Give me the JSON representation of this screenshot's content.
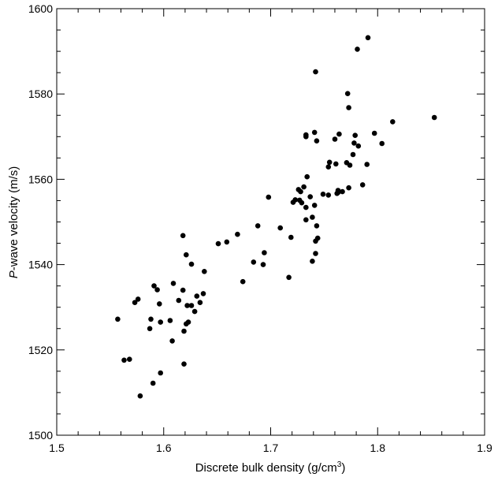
{
  "chart_data": {
    "type": "scatter",
    "xlabel": "Discrete bulk density (g/cm3)",
    "xlabel_main": "Discrete bulk density (g/cm",
    "xlabel_sup": "3",
    "xlabel_end": ")",
    "ylabel": "P-wave velocity (m/s)",
    "ylabel_italic": "P",
    "ylabel_rest": "-wave velocity (m/s)",
    "xlim": [
      1.5,
      1.9
    ],
    "ylim": [
      1500,
      1600
    ],
    "x_ticks": [
      "1.5",
      "1.6",
      "1.7",
      "1.8",
      "1.9"
    ],
    "y_ticks": [
      "1500",
      "1520",
      "1540",
      "1560",
      "1580",
      "1600"
    ],
    "grid": false,
    "marker_color": "#000000",
    "points": [
      [
        1.791,
        1593.2
      ],
      [
        1.781,
        1590.5
      ],
      [
        1.742,
        1585.2
      ],
      [
        1.772,
        1580.1
      ],
      [
        1.773,
        1576.8
      ],
      [
        1.853,
        1574.5
      ],
      [
        1.814,
        1573.5
      ],
      [
        1.741,
        1571.0
      ],
      [
        1.797,
        1570.8
      ],
      [
        1.733,
        1570.4
      ],
      [
        1.764,
        1570.6
      ],
      [
        1.779,
        1570.3
      ],
      [
        1.733,
        1570.0
      ],
      [
        1.76,
        1569.4
      ],
      [
        1.743,
        1569.0
      ],
      [
        1.804,
        1568.4
      ],
      [
        1.778,
        1568.5
      ],
      [
        1.782,
        1567.8
      ],
      [
        1.771,
        1563.9
      ],
      [
        1.761,
        1563.6
      ],
      [
        1.774,
        1563.3
      ],
      [
        1.777,
        1565.8
      ],
      [
        1.79,
        1563.5
      ],
      [
        1.754,
        1562.9
      ],
      [
        1.755,
        1564.0
      ],
      [
        1.734,
        1560.6
      ],
      [
        1.786,
        1558.7
      ],
      [
        1.773,
        1558.0
      ],
      [
        1.763,
        1557.4
      ],
      [
        1.767,
        1557.1
      ],
      [
        1.762,
        1556.7
      ],
      [
        1.763,
        1556.9
      ],
      [
        1.749,
        1556.5
      ],
      [
        1.754,
        1556.3
      ],
      [
        1.731,
        1558.2
      ],
      [
        1.726,
        1557.6
      ],
      [
        1.728,
        1557.1
      ],
      [
        1.737,
        1555.9
      ],
      [
        1.698,
        1555.8
      ],
      [
        1.727,
        1555.1
      ],
      [
        1.723,
        1555.2
      ],
      [
        1.721,
        1554.6
      ],
      [
        1.729,
        1554.5
      ],
      [
        1.741,
        1553.9
      ],
      [
        1.733,
        1553.4
      ],
      [
        1.739,
        1551.1
      ],
      [
        1.733,
        1550.5
      ],
      [
        1.743,
        1549.1
      ],
      [
        1.709,
        1548.6
      ],
      [
        1.688,
        1549.1
      ],
      [
        1.669,
        1547.1
      ],
      [
        1.719,
        1546.4
      ],
      [
        1.744,
        1546.2
      ],
      [
        1.742,
        1545.5
      ],
      [
        1.659,
        1545.3
      ],
      [
        1.651,
        1544.9
      ],
      [
        1.618,
        1546.8
      ],
      [
        1.694,
        1542.8
      ],
      [
        1.742,
        1542.6
      ],
      [
        1.684,
        1540.6
      ],
      [
        1.693,
        1540.0
      ],
      [
        1.739,
        1540.8
      ],
      [
        1.621,
        1542.3
      ],
      [
        1.626,
        1540.1
      ],
      [
        1.638,
        1538.4
      ],
      [
        1.717,
        1537.0
      ],
      [
        1.674,
        1536.0
      ],
      [
        1.609,
        1535.6
      ],
      [
        1.591,
        1535.0
      ],
      [
        1.594,
        1534.1
      ],
      [
        1.618,
        1534.0
      ],
      [
        1.637,
        1533.2
      ],
      [
        1.631,
        1532.6
      ],
      [
        1.576,
        1531.9
      ],
      [
        1.614,
        1531.6
      ],
      [
        1.573,
        1531.1
      ],
      [
        1.596,
        1530.8
      ],
      [
        1.634,
        1531.1
      ],
      [
        1.626,
        1530.4
      ],
      [
        1.622,
        1530.4
      ],
      [
        1.629,
        1529.0
      ],
      [
        1.557,
        1527.2
      ],
      [
        1.588,
        1527.2
      ],
      [
        1.597,
        1526.5
      ],
      [
        1.606,
        1526.9
      ],
      [
        1.623,
        1526.5
      ],
      [
        1.621,
        1526.1
      ],
      [
        1.587,
        1525.0
      ],
      [
        1.619,
        1524.4
      ],
      [
        1.608,
        1522.1
      ],
      [
        1.563,
        1517.6
      ],
      [
        1.568,
        1517.8
      ],
      [
        1.619,
        1516.7
      ],
      [
        1.597,
        1514.6
      ],
      [
        1.59,
        1512.2
      ],
      [
        1.578,
        1509.2
      ]
    ]
  }
}
